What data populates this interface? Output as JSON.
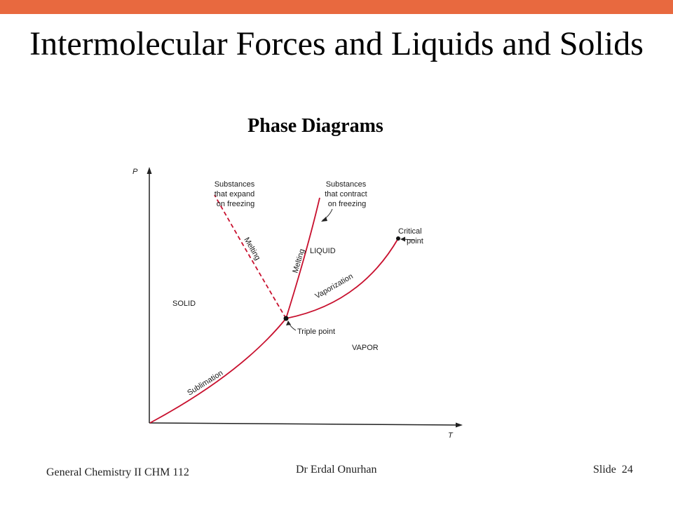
{
  "slide": {
    "title": "Intermolecular Forces and Liquids and Solids",
    "subtitle": "Phase Diagrams",
    "accent_color": "#E8693F"
  },
  "diagram": {
    "axis_p": "P",
    "axis_t": "T",
    "label_expand": [
      "Substances",
      "that expand",
      "on freezing"
    ],
    "label_contract": [
      "Substances",
      "that contract",
      "on freezing"
    ],
    "label_melting_dashed": "Melting",
    "label_melting_solid": "Melting",
    "label_liquid": "LIQUID",
    "label_vaporization": "Vaporization",
    "label_critical": [
      "Critical",
      "point"
    ],
    "label_solid": "SOLID",
    "label_triple": "Triple point",
    "label_vapor": "VAPOR",
    "label_sublimation": "Sublimation",
    "curve_color": "#C8102E"
  },
  "footer": {
    "course": "General Chemistry II CHM 112",
    "author": "Dr Erdal Onurhan",
    "slide_label": "Slide",
    "slide_number": "24"
  }
}
